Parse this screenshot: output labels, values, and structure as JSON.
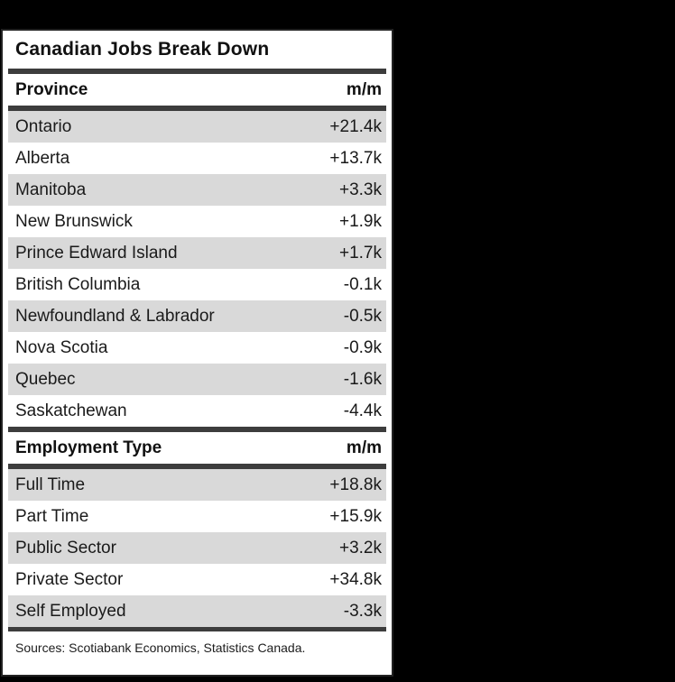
{
  "chart_data": {
    "type": "table",
    "title": "Canadian Jobs Break Down",
    "sections": [
      {
        "header": {
          "label": "Province",
          "value_label": "m/m"
        },
        "rows": [
          {
            "label": "Ontario",
            "value": "+21.4k"
          },
          {
            "label": "Alberta",
            "value": "+13.7k"
          },
          {
            "label": "Manitoba",
            "value": "+3.3k"
          },
          {
            "label": "New Brunswick",
            "value": "+1.9k"
          },
          {
            "label": "Prince Edward Island",
            "value": "+1.7k"
          },
          {
            "label": "British Columbia",
            "value": "-0.1k"
          },
          {
            "label": "Newfoundland & Labrador",
            "value": "-0.5k"
          },
          {
            "label": "Nova Scotia",
            "value": "-0.9k"
          },
          {
            "label": "Quebec",
            "value": "-1.6k"
          },
          {
            "label": "Saskatchewan",
            "value": "-4.4k"
          }
        ]
      },
      {
        "header": {
          "label": "Employment Type",
          "value_label": "m/m"
        },
        "rows": [
          {
            "label": "Full Time",
            "value": "+18.8k"
          },
          {
            "label": "Part Time",
            "value": "+15.9k"
          },
          {
            "label": "Public Sector",
            "value": "+3.2k"
          },
          {
            "label": "Private Sector",
            "value": "+34.8k"
          },
          {
            "label": "Self Employed",
            "value": "-3.3k"
          }
        ]
      }
    ],
    "source_note": "Sources: Scotiabank Economics, Statistics Canada.",
    "layout": {
      "stripe_pattern": "first row of each section shaded, alternating",
      "value_alignment": "right"
    }
  },
  "colors": {
    "background": "#000000",
    "card_background": "#ffffff",
    "card_border": "#222222",
    "row_stripe": "#d9d9d9",
    "rule": "#3d3d3d",
    "text": "#1a1a1a"
  }
}
